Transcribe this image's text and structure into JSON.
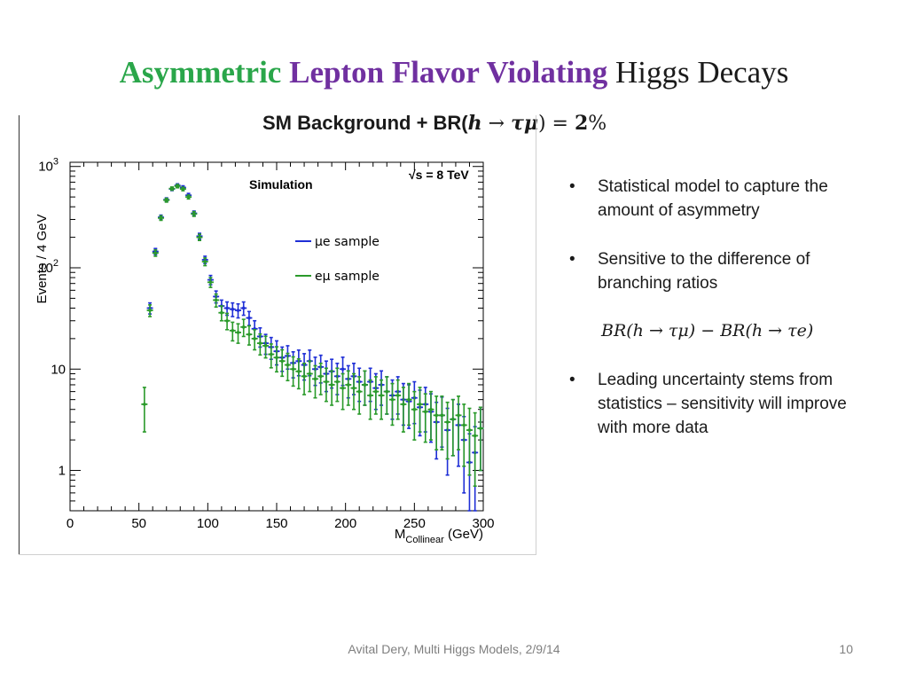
{
  "slide": {
    "title_part1": "Asymmetric",
    "title_part2": "Lepton Flavor Violating",
    "title_part3": "Higgs Decays",
    "subtitle_prefix": "SM Background  + BR(",
    "subtitle_h": "h",
    "subtitle_arrow": " → ",
    "subtitle_taumu": "τμ",
    "subtitle_suffix": ") = ",
    "subtitle_value": "2",
    "subtitle_percent": "%",
    "bullets": [
      "Statistical model to capture the amount of asymmetry",
      "Sensitive to the difference of branching ratios",
      "Leading uncertainty stems from statistics – sensitivity will improve with more data"
    ],
    "formula": "BR(h → τμ) − BR(h → τe)",
    "footer": "Avital Dery, Multi Higgs Models, 2/9/14",
    "page_number": "10"
  },
  "chart_data": {
    "type": "scatter",
    "xlabel_main": "M",
    "xlabel_sub": "Collinear",
    "xlabel_unit": " (GeV)",
    "ylabel": "Events / 4 GeV",
    "x_ticks": [
      "0",
      "50",
      "100",
      "150",
      "200",
      "250",
      "300"
    ],
    "y_ticks": [
      "1",
      "10",
      "10",
      "10"
    ],
    "y_tick_superscripts": [
      "",
      "",
      "2",
      "3"
    ],
    "xlim": [
      0,
      300
    ],
    "ylim": [
      0.4,
      1100
    ],
    "yscale": "log",
    "annotation_simulation": "Simulation",
    "annotation_energy": "√s = 8 TeV",
    "legend_position": "middle",
    "series": [
      {
        "name": "μe sample",
        "color": "#1f2fd6",
        "points": [
          [
            58,
            40,
            5
          ],
          [
            62,
            145,
            10
          ],
          [
            66,
            315,
            16
          ],
          [
            70,
            470,
            20
          ],
          [
            74,
            600,
            22
          ],
          [
            78,
            650,
            24
          ],
          [
            82,
            620,
            24
          ],
          [
            86,
            520,
            22
          ],
          [
            90,
            345,
            18
          ],
          [
            94,
            205,
            14
          ],
          [
            98,
            120,
            10
          ],
          [
            102,
            76,
            8
          ],
          [
            106,
            52,
            7
          ],
          [
            110,
            42,
            6
          ],
          [
            114,
            40,
            6
          ],
          [
            118,
            39,
            6
          ],
          [
            122,
            38,
            6
          ],
          [
            126,
            40,
            6
          ],
          [
            130,
            32,
            5
          ],
          [
            134,
            25,
            5
          ],
          [
            138,
            21,
            4.5
          ],
          [
            142,
            18,
            4
          ],
          [
            146,
            16.5,
            4
          ],
          [
            150,
            15,
            4
          ],
          [
            154,
            13,
            3.5
          ],
          [
            158,
            13.5,
            3.5
          ],
          [
            162,
            11.5,
            3.3
          ],
          [
            166,
            12,
            3.4
          ],
          [
            170,
            11,
            3.2
          ],
          [
            174,
            12,
            3.4
          ],
          [
            178,
            10,
            3.1
          ],
          [
            182,
            10.5,
            3.2
          ],
          [
            186,
            9,
            3
          ],
          [
            190,
            9.5,
            3
          ],
          [
            194,
            8.5,
            2.9
          ],
          [
            198,
            10,
            3.1
          ],
          [
            202,
            8,
            2.8
          ],
          [
            206,
            8.5,
            2.9
          ],
          [
            210,
            7.5,
            2.7
          ],
          [
            214,
            7,
            2.6
          ],
          [
            218,
            7.5,
            2.7
          ],
          [
            222,
            6.5,
            2.5
          ],
          [
            226,
            7,
            2.6
          ],
          [
            230,
            6,
            2.4
          ],
          [
            234,
            5.5,
            2.3
          ],
          [
            238,
            6,
            2.4
          ],
          [
            242,
            5,
            2.2
          ],
          [
            246,
            4.8,
            2.2
          ],
          [
            250,
            5.2,
            2.3
          ],
          [
            254,
            4.2,
            2
          ],
          [
            258,
            4.5,
            2.1
          ],
          [
            262,
            3.8,
            1.9
          ],
          [
            266,
            3,
            1.7
          ],
          [
            270,
            3.5,
            1.8
          ],
          [
            274,
            2.5,
            1.6
          ],
          [
            278,
            3.2,
            1.8
          ],
          [
            282,
            2.8,
            1.7
          ],
          [
            286,
            2,
            1.4
          ],
          [
            290,
            1.2,
            1.1
          ],
          [
            294,
            1.5,
            1.2
          ],
          [
            298,
            2.6,
            1.6
          ]
        ]
      },
      {
        "name": "eμ sample",
        "color": "#2a9a2a",
        "points": [
          [
            54,
            4.5,
            2.1
          ],
          [
            58,
            38,
            5
          ],
          [
            62,
            140,
            10
          ],
          [
            66,
            310,
            16
          ],
          [
            70,
            465,
            20
          ],
          [
            74,
            605,
            22
          ],
          [
            78,
            640,
            24
          ],
          [
            82,
            600,
            24
          ],
          [
            86,
            500,
            22
          ],
          [
            90,
            340,
            18
          ],
          [
            94,
            200,
            14
          ],
          [
            98,
            115,
            10
          ],
          [
            102,
            72,
            8
          ],
          [
            106,
            48,
            7
          ],
          [
            110,
            36,
            6
          ],
          [
            114,
            30,
            5.5
          ],
          [
            118,
            24,
            5
          ],
          [
            122,
            23,
            5
          ],
          [
            126,
            26,
            5
          ],
          [
            130,
            22,
            4.7
          ],
          [
            134,
            20,
            4.5
          ],
          [
            138,
            18,
            4.2
          ],
          [
            142,
            17,
            4.1
          ],
          [
            146,
            14,
            3.7
          ],
          [
            150,
            13,
            3.6
          ],
          [
            154,
            12,
            3.5
          ],
          [
            158,
            11,
            3.3
          ],
          [
            162,
            10,
            3.2
          ],
          [
            166,
            9.5,
            3.1
          ],
          [
            170,
            8.5,
            2.9
          ],
          [
            174,
            9,
            3
          ],
          [
            178,
            8,
            2.8
          ],
          [
            182,
            8.5,
            2.9
          ],
          [
            186,
            7.5,
            2.7
          ],
          [
            190,
            7,
            2.6
          ],
          [
            194,
            7.5,
            2.7
          ],
          [
            198,
            6.5,
            2.5
          ],
          [
            202,
            7,
            2.6
          ],
          [
            206,
            6.5,
            2.5
          ],
          [
            210,
            6,
            2.4
          ],
          [
            214,
            7,
            2.6
          ],
          [
            218,
            5.5,
            2.3
          ],
          [
            222,
            6,
            2.4
          ],
          [
            226,
            5.5,
            2.3
          ],
          [
            230,
            6,
            2.4
          ],
          [
            234,
            5,
            2.2
          ],
          [
            238,
            5.5,
            2.3
          ],
          [
            242,
            4.5,
            2.1
          ],
          [
            246,
            5,
            2.2
          ],
          [
            250,
            4,
            2
          ],
          [
            254,
            4.5,
            2.1
          ],
          [
            258,
            3.8,
            1.9
          ],
          [
            262,
            4,
            2
          ],
          [
            266,
            3.5,
            1.9
          ],
          [
            270,
            3.5,
            1.9
          ],
          [
            274,
            3,
            1.7
          ],
          [
            278,
            3.2,
            1.8
          ],
          [
            282,
            3.5,
            1.9
          ],
          [
            286,
            2.8,
            1.7
          ],
          [
            290,
            2.5,
            1.6
          ],
          [
            294,
            2.2,
            1.5
          ],
          [
            298,
            2.6,
            1.6
          ]
        ]
      }
    ]
  }
}
